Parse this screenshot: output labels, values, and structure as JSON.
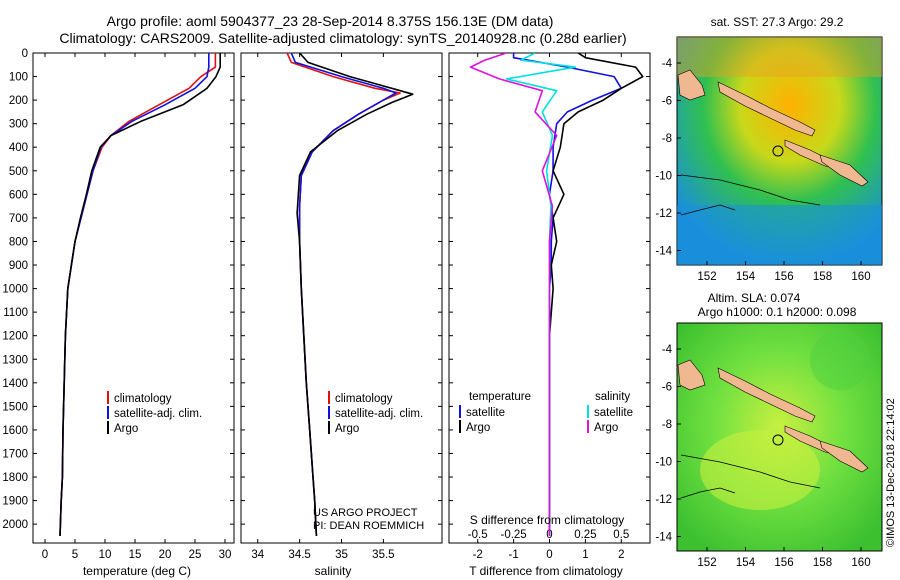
{
  "title_line1": "Argo profile: aoml 5904377_23 28-Sep-2014 8.375S 156.13E (DM data)",
  "title_line2": "Climatology: CARS2009. Satellite-adjusted climatology: synTS_20140928.nc (0.28d earlier)",
  "project_line1": "US ARGO PROJECT",
  "project_line2": "PI: DEAN ROEMMICH",
  "footer_stamp": "©IMOS 13-Dec-2018 22:14:02",
  "legend_labels": {
    "climatology": "climatology",
    "satellite_adj": "satellite-adj. clim.",
    "argo": "Argo"
  },
  "diff_legend": {
    "temperature": "temperature",
    "salinity": "salinity",
    "satellite": "satellite",
    "argo": "Argo"
  },
  "colors": {
    "climatology": "#e01010",
    "satellite": "#1010e0",
    "argo": "#000000",
    "sal_sat": "#00e0e0",
    "sal_argo": "#e010e0"
  },
  "map1_title": "sat. SST: 27.3 Argo: 29.2",
  "map2_title_line1": "Altim. SLA: 0.074",
  "map2_title_line2": "Argo h1000: 0.1 h2000: 0.098",
  "map_lon_ticks": [
    "152",
    "154",
    "156",
    "158",
    "160"
  ],
  "map1_lat_ticks": [
    "-4",
    "-6",
    "-8",
    "-10",
    "-12",
    "-14"
  ],
  "map2_lat_ticks": [
    "-4",
    "-6",
    "-8",
    "-10",
    "-12",
    "-14"
  ],
  "chart_data": [
    {
      "type": "line",
      "title": "",
      "xlabel": "temperature (deg C)",
      "ylabel": "",
      "xlim": [
        -2,
        31.5
      ],
      "ylim": [
        2080,
        0
      ],
      "xticks": [
        0,
        5,
        10,
        15,
        20,
        25,
        30
      ],
      "yticks": [
        0,
        100,
        200,
        300,
        400,
        500,
        600,
        700,
        800,
        900,
        1000,
        1100,
        1200,
        1300,
        1400,
        1500,
        1600,
        1700,
        1800,
        1900,
        2000
      ],
      "series": [
        {
          "name": "climatology",
          "color": "#e01010",
          "x": [
            28.4,
            28.4,
            26,
            24,
            19,
            14,
            11,
            9.5,
            8,
            7,
            6,
            5,
            4.4,
            3.8,
            3.4,
            3.2,
            3,
            2.9,
            2.7,
            2.5
          ],
          "y": [
            0,
            60,
            100,
            150,
            220,
            290,
            350,
            400,
            500,
            600,
            700,
            800,
            900,
            1000,
            1200,
            1400,
            1600,
            1800,
            1900,
            2050
          ]
        },
        {
          "name": "satellite-adj. clim.",
          "color": "#1010e0",
          "x": [
            27.3,
            27.3,
            27,
            25,
            20,
            14.5,
            11,
            9.3,
            8,
            7,
            6,
            5,
            4.4,
            3.8,
            3.4,
            3.2,
            3,
            2.9,
            2.7,
            2.5
          ],
          "y": [
            0,
            60,
            100,
            150,
            220,
            290,
            350,
            400,
            500,
            600,
            700,
            800,
            900,
            1000,
            1200,
            1400,
            1600,
            1800,
            1900,
            2050
          ]
        },
        {
          "name": "Argo",
          "color": "#000000",
          "x": [
            29.2,
            29.2,
            28.5,
            27,
            23,
            16,
            11,
            9.2,
            7.8,
            6.9,
            5.9,
            5,
            4.4,
            3.8,
            3.4,
            3.2,
            3,
            2.9,
            2.7,
            2.5
          ],
          "y": [
            0,
            60,
            100,
            150,
            220,
            290,
            350,
            400,
            500,
            600,
            700,
            800,
            900,
            1000,
            1200,
            1400,
            1600,
            1800,
            1900,
            2050
          ]
        }
      ]
    },
    {
      "type": "line",
      "xlabel": "salinity",
      "xlim": [
        33.8,
        36.2
      ],
      "ylim": [
        2080,
        0
      ],
      "xticks": [
        34,
        34.5,
        35,
        35.5
      ],
      "xtick_labels": [
        "34",
        "34.5",
        "35",
        "35.5"
      ],
      "series": [
        {
          "name": "climatology",
          "color": "#e01010",
          "x": [
            34.35,
            34.4,
            34.9,
            35.4,
            35.7,
            35.5,
            35.2,
            34.9,
            34.65,
            34.52,
            34.5,
            34.5,
            34.52,
            34.55,
            34.58,
            34.62,
            34.66,
            34.68,
            34.7
          ],
          "y": [
            0,
            40,
            100,
            150,
            170,
            200,
            260,
            330,
            420,
            520,
            650,
            800,
            1000,
            1200,
            1400,
            1600,
            1800,
            1900,
            2050
          ]
        },
        {
          "name": "satellite-adj. clim.",
          "color": "#1010e0",
          "x": [
            34.4,
            34.45,
            35,
            35.5,
            35.65,
            35.5,
            35.2,
            34.9,
            34.65,
            34.52,
            34.5,
            34.5,
            34.52,
            34.55,
            34.58,
            34.62,
            34.66,
            34.68,
            34.7
          ],
          "y": [
            0,
            40,
            100,
            150,
            170,
            200,
            260,
            330,
            420,
            520,
            650,
            800,
            1000,
            1200,
            1400,
            1600,
            1800,
            1900,
            2050
          ]
        },
        {
          "name": "Argo",
          "color": "#000000",
          "x": [
            34.5,
            34.6,
            35.1,
            35.6,
            35.85,
            35.6,
            35.3,
            34.95,
            34.63,
            34.5,
            34.47,
            34.5,
            34.52,
            34.55,
            34.58,
            34.62,
            34.66,
            34.68,
            34.7
          ],
          "y": [
            0,
            40,
            100,
            150,
            175,
            210,
            260,
            330,
            420,
            520,
            680,
            800,
            1000,
            1200,
            1400,
            1600,
            1800,
            1900,
            2050
          ]
        }
      ]
    },
    {
      "type": "line",
      "xlabel": "T difference from climatology",
      "top_xlabel": "S difference from climatology",
      "xlim": [
        -2.8,
        2.8
      ],
      "ylim": [
        2080,
        0
      ],
      "xticks": [
        -2,
        -1,
        0,
        1,
        2
      ],
      "top_ticks": [
        -0.5,
        -0.25,
        0,
        0.25,
        0.5
      ],
      "top_tick_labels": [
        "-0.5",
        "-0.25",
        "0",
        "0.25",
        "0.5"
      ],
      "series": [
        {
          "name": "temperature satellite",
          "color": "#1010e0",
          "x": [
            -1,
            -1,
            0.5,
            1.8,
            2,
            1.2,
            0.5,
            0.2,
            0.1,
            0.1,
            0,
            0.1,
            0.05,
            0.05,
            0,
            0,
            0,
            0,
            0
          ],
          "y": [
            0,
            20,
            60,
            100,
            150,
            200,
            250,
            300,
            400,
            500,
            600,
            700,
            800,
            900,
            1000,
            1200,
            1500,
            1800,
            2050
          ]
        },
        {
          "name": "temperature Argo",
          "color": "#000000",
          "x": [
            0.8,
            1,
            2.4,
            2.6,
            2,
            1.5,
            0.8,
            0.4,
            0.3,
            0.1,
            0.4,
            0.1,
            0.2,
            0.05,
            0.1,
            0,
            0,
            0,
            0
          ],
          "y": [
            0,
            20,
            60,
            100,
            150,
            200,
            250,
            300,
            400,
            500,
            600,
            700,
            800,
            900,
            1000,
            1200,
            1500,
            1800,
            2050
          ]
        },
        {
          "name": "salinity satellite",
          "color": "#00e0e0",
          "x": [
            -0.1,
            -0.2,
            0.18,
            -0.3,
            0.05,
            -0.05,
            0.02,
            -0.02,
            0.01,
            0,
            0,
            0,
            0,
            0,
            0
          ],
          "y": [
            0,
            30,
            60,
            110,
            160,
            250,
            350,
            500,
            650,
            800,
            1000,
            1200,
            1500,
            1800,
            2050
          ]
        },
        {
          "name": "salinity Argo",
          "color": "#e010e0",
          "x": [
            -0.3,
            -0.45,
            -0.55,
            -0.35,
            -0.05,
            -0.1,
            0.05,
            -0.05,
            0.02,
            0,
            0,
            0,
            0,
            0,
            0
          ],
          "y": [
            0,
            30,
            60,
            110,
            160,
            250,
            350,
            500,
            650,
            800,
            1000,
            1200,
            1500,
            1800,
            2050
          ]
        }
      ]
    }
  ]
}
